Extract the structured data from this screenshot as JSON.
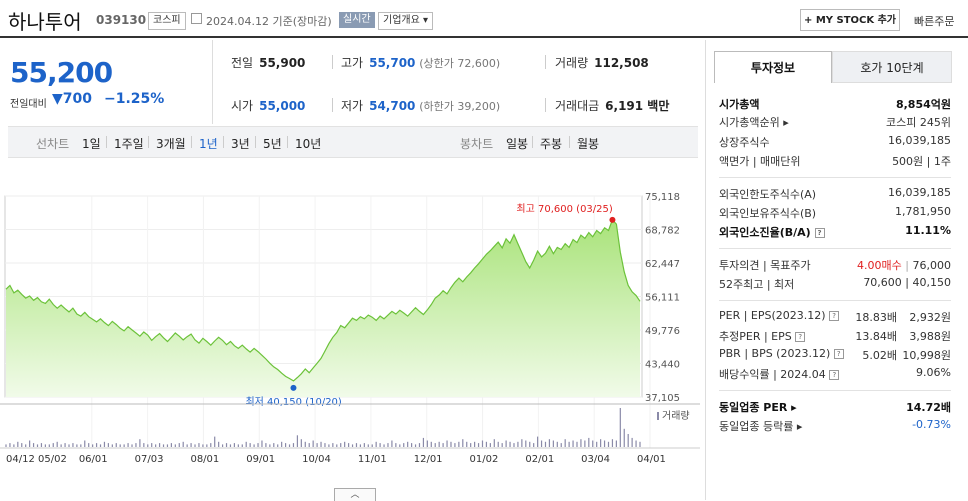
{
  "header": {
    "name": "하나투어",
    "code": "039130",
    "market_badge": "코스피",
    "date_text": "2024.04.12  기준(장마감)",
    "live_badge": "실시간",
    "company_button": "기업개요 ▾",
    "mystock_button": "+ MY STOCK 추가",
    "quick_order": "빠른주문"
  },
  "price": {
    "current": "55,200",
    "change_label": "전일대비",
    "change_value": "▼700",
    "change_pct": "−1.25%"
  },
  "quote": {
    "prev_label": "전일",
    "prev": "55,900",
    "high_label": "고가",
    "high": "55,700",
    "upper_limit": "(상한가 72,600)",
    "volume_label": "거래량",
    "volume": "112,508",
    "open_label": "시가",
    "open": "55,000",
    "low_label": "저가",
    "low": "54,700",
    "lower_limit": "(하한가 39,200)",
    "amount_label": "거래대금",
    "amount": "6,191 백만"
  },
  "periods": {
    "line_label": "선차트",
    "items": [
      "1일",
      "1주일",
      "3개월",
      "1년",
      "3년",
      "5년",
      "10년"
    ],
    "selected": "1년",
    "candle_label": "봉차트",
    "candle_items": [
      "일봉",
      "주봉",
      "월봉"
    ]
  },
  "right_tabs": [
    "투자정보",
    "호가 10단계"
  ],
  "invest": {
    "group1": [
      {
        "l": "시가총액",
        "r": "8,854억원",
        "bold": true
      },
      {
        "l": "시가총액순위 ▸",
        "r": "코스피 245위"
      },
      {
        "l": "상장주식수",
        "r": "16,039,185"
      },
      {
        "l": "액면가 | 매매단위",
        "r": "500원 | 1주"
      }
    ],
    "group2": [
      {
        "l": "외국인한도주식수(A)",
        "r": "16,039,185"
      },
      {
        "l": "외국인보유주식수(B)",
        "r": "1,781,950"
      },
      {
        "l": "외국인소진율(B/A)",
        "r": "11.11%",
        "bold": true
      }
    ],
    "opinion_label": "투자의견 | 목표주가",
    "opinion_value": "4.00매수",
    "target_price": "76,000",
    "week52_label": "52주최고 | 최저",
    "week52_value": "70,600 | 40,150",
    "group4": [
      {
        "l": "PER | EPS(2023.12)",
        "r1": "18.83배",
        "r2": "2,932원"
      },
      {
        "l": "추정PER | EPS",
        "r1": "13.84배",
        "r2": "3,988원"
      },
      {
        "l": "PBR | BPS (2023.12)",
        "r1": "5.02배",
        "r2": "10,998원"
      },
      {
        "l": "배당수익률 | 2024.04",
        "r1": "",
        "r2": "9.06%"
      }
    ],
    "sector_per_label": "동일업종 PER ▸",
    "sector_per": "14.72배",
    "sector_chg_label": "동일업종 등락률 ▸",
    "sector_chg": "-0.73%"
  },
  "chart_data": {
    "type": "area",
    "y_ticks": [
      "75,118",
      "68,782",
      "62,447",
      "56,111",
      "49,776",
      "43,440",
      "37,105"
    ],
    "ylim": [
      37105,
      75118
    ],
    "x_ticks": [
      "04/12 05/02",
      "06/01",
      "07/03",
      "08/01",
      "09/01",
      "10/04",
      "11/01",
      "12/01",
      "01/02",
      "02/01",
      "03/04",
      "04/01"
    ],
    "max_label": "최고 70,600 (03/25)",
    "min_label": "최저 40,150 (10/20)",
    "volume_label": "거래량",
    "prices": [
      57500,
      58200,
      56800,
      57300,
      56500,
      55800,
      56200,
      55400,
      55900,
      55100,
      54800,
      55600,
      54600,
      53900,
      54500,
      53800,
      53200,
      53900,
      52800,
      52400,
      53100,
      52300,
      51800,
      51300,
      51900,
      51200,
      50600,
      51400,
      50800,
      50100,
      49600,
      50400,
      49800,
      49200,
      48600,
      49400,
      48800,
      47800,
      48500,
      49100,
      48300,
      47600,
      48400,
      49200,
      48600,
      47900,
      48500,
      49000,
      47900,
      47300,
      48200,
      47600,
      46900,
      47700,
      48400,
      47800,
      47000,
      47600,
      46800,
      46300,
      46900,
      46200,
      45600,
      46300,
      45700,
      45000,
      44300,
      43500,
      42800,
      42300,
      41600,
      41000,
      40600,
      40150,
      40800,
      41500,
      42400,
      41700,
      42600,
      43500,
      44400,
      45800,
      47200,
      48400,
      49300,
      50600,
      50200,
      51100,
      52000,
      51600,
      52300,
      51900,
      52600,
      52200,
      51600,
      52400,
      51900,
      52600,
      53300,
      52800,
      53500,
      53000,
      52400,
      53200,
      54000,
      53300,
      52700,
      53600,
      54600,
      55800,
      56400,
      57200,
      56600,
      57800,
      58800,
      59600,
      58900,
      59800,
      60600,
      61500,
      62300,
      63200,
      64100,
      64800,
      65600,
      66400,
      65300,
      67000,
      66200,
      67800,
      66100,
      64400,
      62700,
      61500,
      63000,
      64700,
      63600,
      64300,
      65600,
      64200,
      65400,
      65000,
      66100,
      65400,
      66900,
      66300,
      67700,
      67100,
      68200,
      67400,
      68600,
      68000,
      69100,
      68600,
      70600,
      69800,
      64500,
      60800,
      58200,
      57000,
      56300,
      55200
    ],
    "volumes": [
      2,
      3,
      2,
      4,
      3,
      2,
      5,
      3,
      2,
      3,
      2,
      2,
      3,
      4,
      2,
      3,
      2,
      3,
      2,
      2,
      5,
      3,
      2,
      3,
      2,
      4,
      3,
      2,
      3,
      2,
      2,
      3,
      2,
      3,
      6,
      3,
      2,
      3,
      2,
      3,
      2,
      2,
      3,
      2,
      3,
      4,
      2,
      3,
      2,
      3,
      2,
      2,
      3,
      8,
      4,
      2,
      3,
      2,
      3,
      2,
      2,
      4,
      3,
      2,
      3,
      5,
      3,
      2,
      3,
      2,
      4,
      3,
      2,
      3,
      9,
      6,
      4,
      3,
      5,
      3,
      4,
      3,
      2,
      3,
      2,
      3,
      4,
      3,
      2,
      3,
      2,
      3,
      2,
      2,
      4,
      3,
      2,
      3,
      5,
      3,
      2,
      3,
      4,
      3,
      2,
      3,
      7,
      5,
      4,
      3,
      4,
      3,
      5,
      4,
      3,
      4,
      6,
      4,
      3,
      4,
      3,
      5,
      4,
      3,
      6,
      4,
      3,
      5,
      4,
      3,
      4,
      6,
      5,
      4,
      3,
      8,
      5,
      4,
      6,
      5,
      4,
      3,
      6,
      4,
      5,
      4,
      6,
      5,
      7,
      5,
      4,
      6,
      5,
      4,
      6,
      5,
      30,
      14,
      10,
      7,
      5,
      4
    ]
  }
}
